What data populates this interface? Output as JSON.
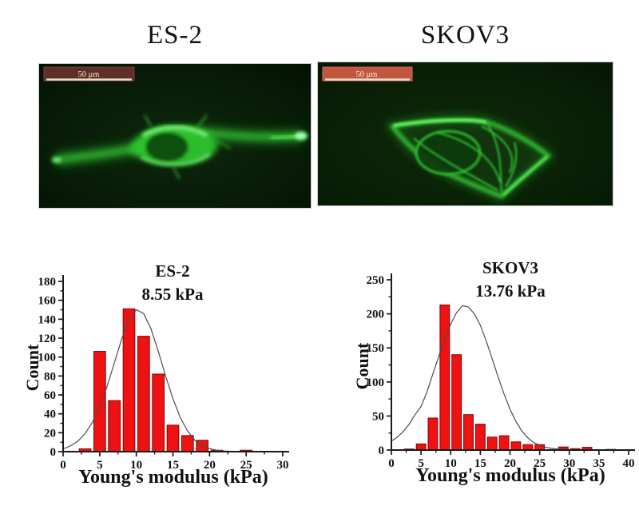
{
  "figure": {
    "panels": {
      "es2_micrograph": {
        "title": "ES-2",
        "scale_bar_label": "50 μm"
      },
      "skov3_micrograph": {
        "title": "SKOV3",
        "scale_bar_label": "50 μm"
      }
    }
  },
  "colors": {
    "bar_fill": "#ee1212",
    "bar_edge": "#860000",
    "curve": "#4d4d4d",
    "axis": "#1a1a1a",
    "es2_scalebar": "#5e2f28",
    "skov3_scalebar": "#c25540",
    "scalebar_underline": "#ecdcc2",
    "cell_green": "#2ec42e"
  },
  "chart_data": [
    {
      "type": "bar",
      "title": "ES-2",
      "subtitle": "8.55 kPa",
      "xlabel": "Young's modulus (kPa)",
      "ylabel": "Count",
      "xlim": [
        0,
        30
      ],
      "ylim": [
        0,
        180
      ],
      "xticks": [
        0,
        5,
        10,
        15,
        20,
        25,
        30
      ],
      "yticks": [
        0,
        20,
        40,
        60,
        80,
        100,
        120,
        140,
        160,
        180
      ],
      "grid": false,
      "bin_width": 2,
      "bar_width": 1.6,
      "bars": [
        [
          3,
          3
        ],
        [
          5,
          106
        ],
        [
          7,
          54
        ],
        [
          9,
          151
        ],
        [
          11,
          122
        ],
        [
          13,
          82
        ],
        [
          15,
          28
        ],
        [
          17,
          17
        ],
        [
          19,
          12
        ],
        [
          21,
          1.5
        ],
        [
          25,
          1.5
        ]
      ],
      "fit_curve": [
        [
          0,
          3
        ],
        [
          1,
          6
        ],
        [
          2,
          11
        ],
        [
          3,
          19
        ],
        [
          4,
          31
        ],
        [
          5,
          48
        ],
        [
          6,
          69
        ],
        [
          7,
          94
        ],
        [
          8,
          119
        ],
        [
          9,
          140
        ],
        [
          10,
          150
        ],
        [
          11,
          146
        ],
        [
          12,
          130
        ],
        [
          13,
          106
        ],
        [
          14,
          80
        ],
        [
          15,
          56
        ],
        [
          16,
          36
        ],
        [
          17,
          22
        ],
        [
          18,
          12
        ],
        [
          19,
          6.5
        ],
        [
          20,
          3.2
        ],
        [
          21,
          1.5
        ],
        [
          22,
          0.7
        ],
        [
          23,
          0.3
        ],
        [
          24,
          0.15
        ],
        [
          25,
          0.1
        ],
        [
          27,
          0.05
        ],
        [
          30,
          0.02
        ]
      ]
    },
    {
      "type": "bar",
      "title": "SKOV3",
      "subtitle": "13.76 kPa",
      "xlabel": "Young's modulus (kPa)",
      "ylabel": "Count",
      "xlim": [
        0,
        40
      ],
      "ylim": [
        0,
        250
      ],
      "xticks": [
        0,
        5,
        10,
        15,
        20,
        25,
        30,
        35,
        40
      ],
      "yticks": [
        0,
        50,
        100,
        150,
        200,
        250
      ],
      "grid": false,
      "bin_width": 2,
      "bar_width": 1.6,
      "bars": [
        [
          3,
          1.5
        ],
        [
          5,
          9
        ],
        [
          7,
          47
        ],
        [
          9,
          213
        ],
        [
          11,
          140
        ],
        [
          13,
          52
        ],
        [
          15,
          38
        ],
        [
          17,
          19
        ],
        [
          19,
          21
        ],
        [
          21,
          12
        ],
        [
          23,
          8
        ],
        [
          25,
          8
        ],
        [
          29,
          4.5
        ],
        [
          31,
          2
        ],
        [
          33,
          4
        ],
        [
          37,
          1
        ]
      ],
      "fit_curve": [
        [
          0,
          13
        ],
        [
          1,
          19
        ],
        [
          2,
          27
        ],
        [
          3,
          38
        ],
        [
          4,
          52
        ],
        [
          5,
          64
        ],
        [
          6,
          85
        ],
        [
          7,
          112
        ],
        [
          8,
          138
        ],
        [
          9,
          163
        ],
        [
          10,
          185
        ],
        [
          11,
          202
        ],
        [
          12,
          212
        ],
        [
          13,
          210
        ],
        [
          14,
          200
        ],
        [
          15,
          183
        ],
        [
          16,
          160
        ],
        [
          17,
          134
        ],
        [
          18,
          107
        ],
        [
          19,
          82
        ],
        [
          20,
          60
        ],
        [
          21,
          42
        ],
        [
          22,
          28
        ],
        [
          23,
          18
        ],
        [
          24,
          11
        ],
        [
          25,
          7
        ],
        [
          26,
          4
        ],
        [
          27,
          2.5
        ],
        [
          28,
          1.5
        ],
        [
          29,
          1
        ],
        [
          30,
          0.7
        ],
        [
          32,
          0.4
        ],
        [
          34,
          0.2
        ],
        [
          36,
          0.1
        ],
        [
          38,
          0.05
        ],
        [
          40,
          0.03
        ]
      ]
    }
  ]
}
